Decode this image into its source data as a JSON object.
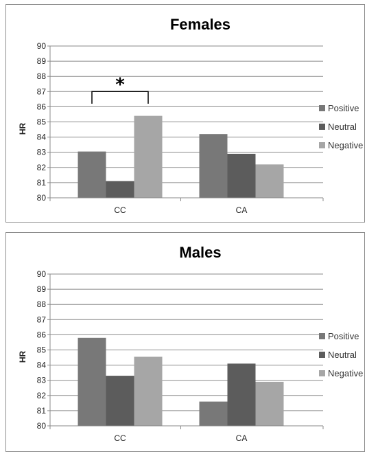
{
  "chart_data": [
    {
      "type": "bar",
      "title": "Females",
      "ylabel": "HR",
      "xlabel": "",
      "ylim": [
        80,
        90
      ],
      "yticks": [
        80,
        81,
        82,
        83,
        84,
        85,
        86,
        87,
        88,
        89,
        90
      ],
      "categories": [
        "CC",
        "CA"
      ],
      "series": [
        {
          "name": "Positive",
          "values": [
            83.05,
            84.2
          ],
          "color": "#787878"
        },
        {
          "name": "Neutral",
          "values": [
            81.1,
            82.9
          ],
          "color": "#5c5c5c"
        },
        {
          "name": "Negative",
          "values": [
            85.4,
            82.2
          ],
          "color": "#a6a6a6"
        }
      ],
      "annotation": {
        "text": "*",
        "category": "CC",
        "from_series": "Positive",
        "to_series": "Negative"
      },
      "grid": true,
      "legend": "right"
    },
    {
      "type": "bar",
      "title": "Males",
      "ylabel": "HR",
      "xlabel": "",
      "ylim": [
        80,
        90
      ],
      "yticks": [
        80,
        81,
        82,
        83,
        84,
        85,
        86,
        87,
        88,
        89,
        90
      ],
      "categories": [
        "CC",
        "CA"
      ],
      "series": [
        {
          "name": "Positive",
          "values": [
            85.8,
            81.6
          ],
          "color": "#787878"
        },
        {
          "name": "Neutral",
          "values": [
            83.3,
            84.1
          ],
          "color": "#5c5c5c"
        },
        {
          "name": "Negative",
          "values": [
            84.55,
            82.9
          ],
          "color": "#a6a6a6"
        }
      ],
      "grid": true,
      "legend": "right"
    }
  ]
}
